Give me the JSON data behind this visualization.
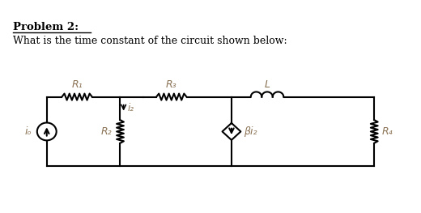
{
  "title_line1": "Problem 2:",
  "title_line2": "What is the time constant of the circuit shown below:",
  "bg_color": "#ffffff",
  "text_color": "#000000",
  "component_color": "#000000",
  "label_color": "#8B7355",
  "fig_width": 5.2,
  "fig_height": 2.63,
  "dpi": 100,
  "labels": {
    "R1": "R₁",
    "R2": "R₂",
    "R3": "R₃",
    "R4": "R₄",
    "L": "L",
    "i2": "i₂",
    "io": "iₒ",
    "beta_i2": "βi₂"
  }
}
